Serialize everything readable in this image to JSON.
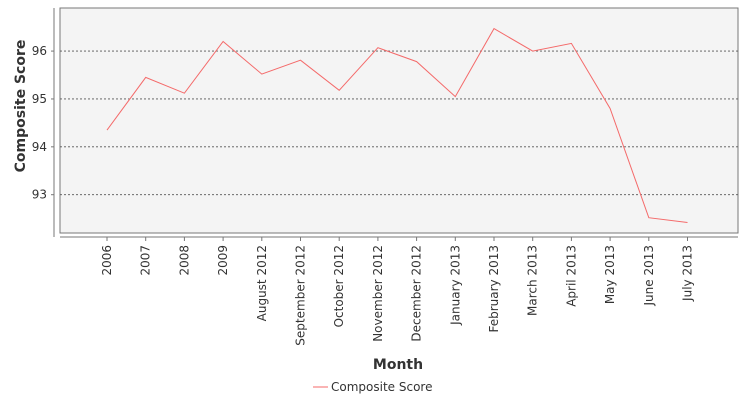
{
  "chart_data": {
    "type": "line",
    "title": "",
    "xlabel": "Month",
    "ylabel": "Composite Score",
    "categories": [
      "2006",
      "2007",
      "2008",
      "2009",
      "August 2012",
      "September 2012",
      "October 2012",
      "November 2012",
      "December 2012",
      "January 2013",
      "February 2013",
      "March 2013",
      "April 2013",
      "May 2013",
      "June 2013",
      "July 2013"
    ],
    "series": [
      {
        "name": "Composite Score",
        "color": "#f46a6a",
        "values": [
          94.35,
          95.45,
          95.12,
          96.2,
          95.52,
          95.81,
          95.18,
          96.07,
          95.78,
          95.05,
          96.47,
          96.0,
          96.16,
          94.8,
          92.52,
          92.42
        ]
      }
    ],
    "yticks": [
      93,
      94,
      95,
      96
    ],
    "ylim": [
      92.2,
      96.9
    ],
    "grid": true,
    "legend_position": "bottom",
    "plot_background": "#f4f4f4"
  }
}
